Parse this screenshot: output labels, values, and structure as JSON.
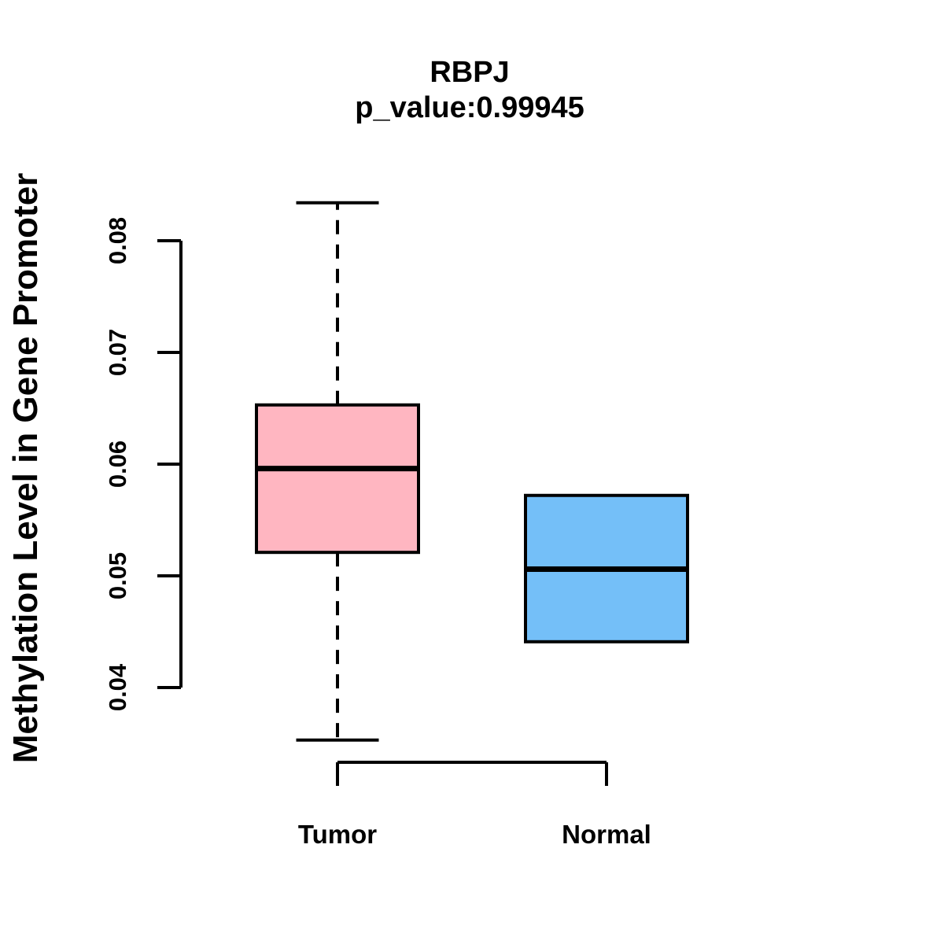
{
  "figure": {
    "background_color": "#FFFFFF",
    "line_color": "#000000"
  },
  "chart_data": {
    "type": "boxplot",
    "title": "RBPJ",
    "subtitle": "p_value:0.99945",
    "ylabel": "Methylation Level in Gene Promoter",
    "xlabel": "",
    "yticks": [
      0.04,
      0.05,
      0.06,
      0.07,
      0.08
    ],
    "ytick_labels": [
      "0.04",
      "0.05",
      "0.06",
      "0.07",
      "0.08"
    ],
    "ylim": [
      0.035,
      0.084
    ],
    "grid": false,
    "legend_position": "none",
    "categories": [
      "Tumor",
      "Normal"
    ],
    "series": [
      {
        "name": "Tumor",
        "fill_color": "#FFB6C1",
        "whisker_low": 0.0353,
        "q1": 0.0521,
        "median": 0.0596,
        "q3": 0.0653,
        "whisker_high": 0.0834
      },
      {
        "name": "Normal",
        "fill_color": "#74BFF8",
        "whisker_low": 0.0441,
        "q1": 0.0441,
        "median": 0.0506,
        "q3": 0.0572,
        "whisker_high": 0.0572
      }
    ]
  }
}
